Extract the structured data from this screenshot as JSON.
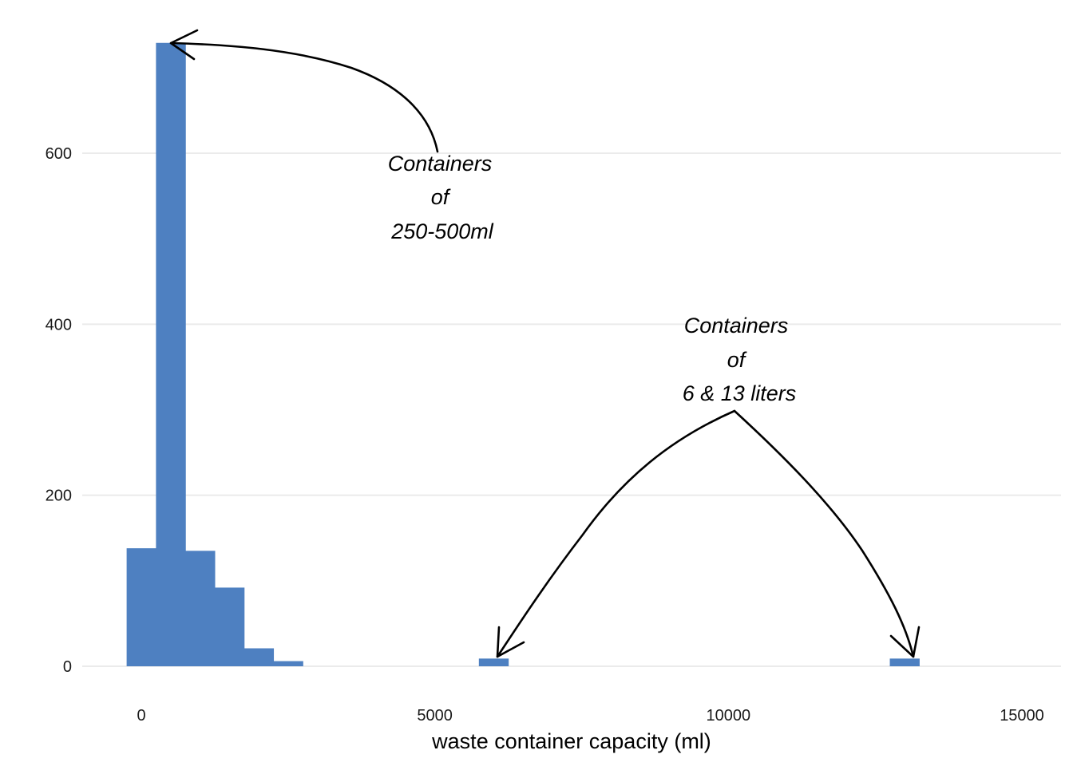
{
  "chart_data": {
    "type": "bar",
    "title": "",
    "xlabel": "waste container capacity (ml)",
    "ylabel": "",
    "x_ticks": [
      0,
      5000,
      10000,
      15000
    ],
    "x_tick_labels": [
      "0",
      "5000",
      "10000",
      "15000"
    ],
    "y_ticks": [
      0,
      200,
      400,
      600
    ],
    "y_tick_labels": [
      "0",
      "200",
      "400",
      "600"
    ],
    "xlim": [
      -750,
      15400
    ],
    "ylim": [
      -30,
      760
    ],
    "grid": true,
    "bar_color": "#4e80c1",
    "bins": [
      {
        "x_start": -250,
        "x_end": 250,
        "count": 138
      },
      {
        "x_start": 250,
        "x_end": 750,
        "count": 729
      },
      {
        "x_start": 750,
        "x_end": 1250,
        "count": 135
      },
      {
        "x_start": 1250,
        "x_end": 1750,
        "count": 92
      },
      {
        "x_start": 1750,
        "x_end": 2250,
        "count": 21
      },
      {
        "x_start": 2250,
        "x_end": 2750,
        "count": 6
      },
      {
        "x_start": 5750,
        "x_end": 6250,
        "count": 9
      },
      {
        "x_start": 12750,
        "x_end": 13250,
        "count": 9
      }
    ],
    "annotations": [
      {
        "lines": [
          "Containers",
          "of",
          "250-500ml"
        ]
      },
      {
        "lines": [
          "Containers",
          "of",
          "6 & 13 liters"
        ]
      }
    ]
  }
}
